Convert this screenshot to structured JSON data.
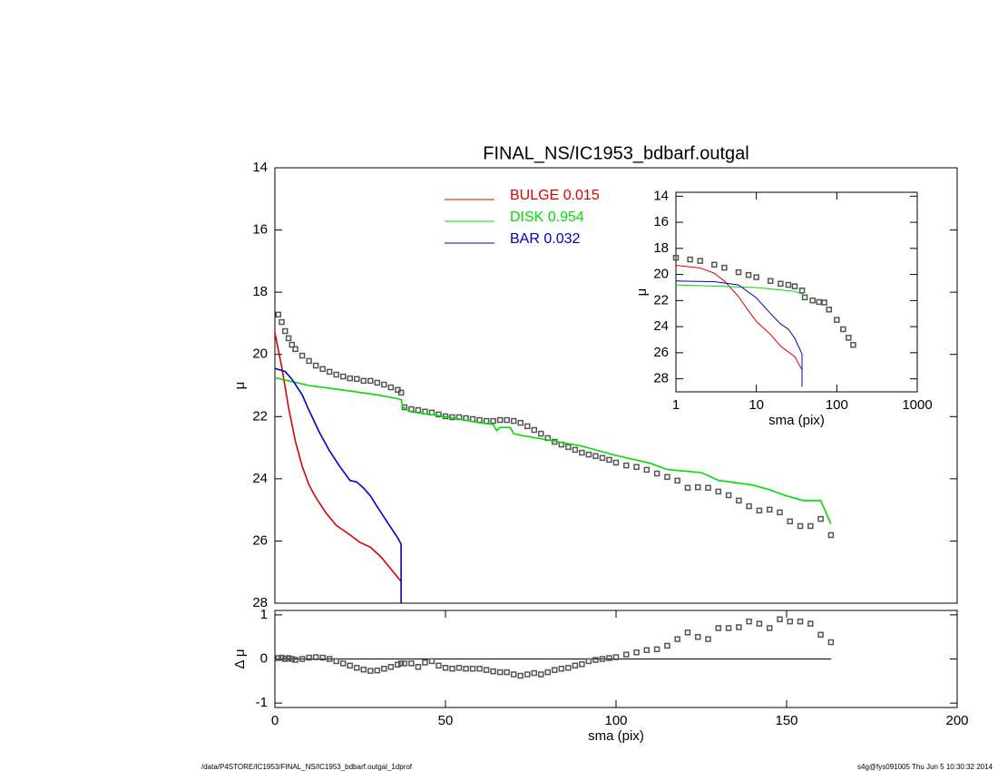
{
  "chart_data": [
    {
      "type": "line",
      "title": "FINAL_NS/IC1953_bdbarf.outgal",
      "y_label": "μ",
      "xlim": [
        0,
        200
      ],
      "ylim": [
        14,
        28
      ],
      "yticks": [
        14,
        16,
        18,
        20,
        22,
        24,
        26,
        28
      ],
      "series": [
        {
          "style": "squares",
          "color": "#555555",
          "x": [
            1,
            2,
            3,
            4,
            5,
            6,
            8,
            10,
            12,
            14,
            16,
            18,
            20,
            22,
            24,
            26,
            28,
            30,
            32,
            34,
            36,
            37,
            38,
            40,
            42,
            44,
            46,
            48,
            50,
            52,
            54,
            56,
            58,
            60,
            62,
            64,
            66,
            68,
            70,
            72,
            74,
            76,
            78,
            80,
            82,
            84,
            86,
            88,
            90,
            92,
            94,
            96,
            98,
            100,
            103,
            106,
            109,
            112,
            115,
            118,
            121,
            124,
            127,
            130,
            133,
            136,
            139,
            142,
            145,
            148,
            151,
            154,
            157,
            160,
            163
          ],
          "values": [
            18.72,
            18.96,
            19.25,
            19.48,
            19.69,
            19.83,
            20.04,
            20.21,
            20.36,
            20.47,
            20.56,
            20.65,
            20.71,
            20.77,
            20.79,
            20.85,
            20.85,
            20.91,
            20.97,
            21.06,
            21.14,
            21.23,
            21.7,
            21.76,
            21.79,
            21.84,
            21.87,
            21.93,
            21.99,
            22.02,
            22.02,
            22.05,
            22.08,
            22.11,
            22.14,
            22.14,
            22.11,
            22.11,
            22.14,
            22.2,
            22.31,
            22.43,
            22.55,
            22.69,
            22.81,
            22.9,
            22.98,
            23.07,
            23.16,
            23.22,
            23.27,
            23.33,
            23.39,
            23.48,
            23.57,
            23.62,
            23.71,
            23.83,
            23.94,
            24.06,
            24.29,
            24.27,
            24.29,
            24.41,
            24.53,
            24.7,
            24.88,
            25.02,
            24.99,
            25.08,
            25.37,
            25.52,
            25.52,
            25.29,
            25.81
          ]
        },
        {
          "style": "line",
          "name": "BULGE  0.015",
          "color": "#e00000",
          "x": [
            0,
            2,
            4,
            6,
            8,
            10,
            12,
            15,
            18,
            22,
            25,
            28,
            31,
            34,
            37
          ],
          "values": [
            19.3,
            20.4,
            21.7,
            22.8,
            23.6,
            24.2,
            24.6,
            25.1,
            25.5,
            25.8,
            26.05,
            26.2,
            26.5,
            26.9,
            27.3
          ]
        },
        {
          "style": "line",
          "name": "DISK  0.954",
          "color": "#00dd00",
          "x": [
            0,
            10,
            20,
            30,
            37,
            37.5,
            40,
            50,
            60,
            64,
            65,
            66,
            69,
            70,
            72,
            80,
            90,
            100,
            110,
            115,
            120,
            125,
            130,
            140,
            145,
            150,
            155,
            160,
            163
          ],
          "values": [
            20.75,
            21.0,
            21.15,
            21.3,
            21.45,
            21.69,
            21.85,
            22.0,
            22.2,
            22.25,
            22.45,
            22.35,
            22.35,
            22.55,
            22.6,
            22.75,
            22.95,
            23.25,
            23.5,
            23.7,
            23.75,
            23.8,
            24.05,
            24.2,
            24.35,
            24.55,
            24.7,
            24.7,
            25.45
          ]
        },
        {
          "style": "line",
          "name": "BAR  0.032",
          "color": "#0000cc",
          "x": [
            0,
            3,
            5,
            8,
            10,
            13,
            16,
            19,
            22,
            24,
            26,
            28,
            30,
            33,
            36,
            37,
            37
          ],
          "values": [
            20.45,
            20.55,
            20.8,
            21.3,
            21.8,
            22.5,
            23.1,
            23.6,
            24.05,
            24.1,
            24.3,
            24.55,
            24.9,
            25.4,
            25.9,
            26.1,
            28
          ]
        }
      ]
    },
    {
      "type": "line",
      "x_label": "sma (pix)",
      "y_label": "Δ μ",
      "xlim": [
        0,
        200
      ],
      "xticks": [
        0,
        50,
        100,
        150,
        200
      ],
      "ylim": [
        -1.1,
        1.1
      ],
      "yticks": [
        -1,
        0,
        1
      ],
      "hline": 0,
      "series": [
        {
          "style": "squares",
          "color": "#555555",
          "x": [
            1,
            2,
            3,
            4,
            5,
            6,
            8,
            10,
            12,
            14,
            16,
            18,
            20,
            22,
            24,
            26,
            28,
            30,
            32,
            34,
            36,
            37,
            38,
            40,
            42,
            44,
            46,
            48,
            50,
            52,
            54,
            56,
            58,
            60,
            62,
            64,
            66,
            68,
            70,
            72,
            74,
            76,
            78,
            80,
            82,
            84,
            86,
            88,
            90,
            92,
            94,
            96,
            98,
            100,
            103,
            106,
            109,
            112,
            115,
            118,
            121,
            124,
            127,
            130,
            133,
            136,
            139,
            142,
            145,
            148,
            151,
            154,
            157,
            160,
            163
          ],
          "values": [
            0.02,
            0.03,
            0,
            0.02,
            0,
            -0.02,
            0,
            0.03,
            0.04,
            0.03,
            0,
            -0.05,
            -0.1,
            -0.15,
            -0.2,
            -0.24,
            -0.27,
            -0.26,
            -0.22,
            -0.18,
            -0.13,
            -0.1,
            -0.1,
            -0.1,
            -0.18,
            -0.08,
            -0.05,
            -0.15,
            -0.2,
            -0.22,
            -0.2,
            -0.22,
            -0.22,
            -0.22,
            -0.25,
            -0.28,
            -0.3,
            -0.3,
            -0.35,
            -0.38,
            -0.35,
            -0.32,
            -0.35,
            -0.3,
            -0.25,
            -0.22,
            -0.2,
            -0.15,
            -0.12,
            -0.05,
            -0.02,
            0,
            0.02,
            0.04,
            0.1,
            0.15,
            0.2,
            0.22,
            0.3,
            0.45,
            0.6,
            0.5,
            0.45,
            0.7,
            0.7,
            0.72,
            0.85,
            0.8,
            0.7,
            0.9,
            0.85,
            0.85,
            0.8,
            0.55,
            0.38
          ]
        }
      ]
    },
    {
      "type": "line",
      "x_label": "sma (pix)",
      "y_label": "μ",
      "xlog": true,
      "xlim": [
        1,
        1000
      ],
      "xticks": [
        1,
        10,
        100,
        1000
      ],
      "ylim": [
        13.7,
        29
      ],
      "yticks": [
        14,
        16,
        18,
        20,
        22,
        24,
        26,
        28
      ],
      "series": [
        {
          "style": "squares",
          "color": "#555555",
          "x": [
            1,
            1.5,
            2,
            3,
            4,
            6,
            8,
            10,
            15,
            20,
            25,
            30,
            37,
            40,
            50,
            60,
            70,
            80,
            100,
            120,
            140,
            160
          ],
          "values": [
            18.72,
            18.85,
            18.96,
            19.25,
            19.48,
            19.83,
            20.04,
            20.21,
            20.5,
            20.71,
            20.8,
            20.91,
            21.23,
            21.76,
            21.99,
            22.11,
            22.15,
            22.69,
            23.48,
            24.2,
            24.85,
            25.4
          ]
        },
        {
          "style": "line",
          "color": "#e00000",
          "x": [
            1,
            2,
            3,
            4,
            6,
            8,
            10,
            15,
            20,
            30,
            37,
            37
          ],
          "values": [
            19.3,
            19.5,
            19.9,
            20.5,
            21.7,
            22.8,
            23.6,
            24.6,
            25.5,
            26.3,
            27.3,
            28.6
          ]
        },
        {
          "style": "line",
          "color": "#00dd00",
          "x": [
            1,
            10,
            30,
            37,
            40
          ],
          "values": [
            20.8,
            21.0,
            21.3,
            21.5,
            21.6
          ]
        },
        {
          "style": "line",
          "color": "#0000cc",
          "x": [
            1,
            3,
            6,
            10,
            15,
            20,
            25,
            30,
            37,
            37
          ],
          "values": [
            20.5,
            20.55,
            20.8,
            21.8,
            23.0,
            23.8,
            24.2,
            24.9,
            26.1,
            28.6
          ]
        }
      ]
    }
  ],
  "footer": {
    "left": "/data/P4STORE/IC1953/FINAL_NS/IC1953_bdbarf.outgal_1dprof",
    "right": "s4g@fys091005  Thu Jun  5 10:30:32 2014"
  }
}
